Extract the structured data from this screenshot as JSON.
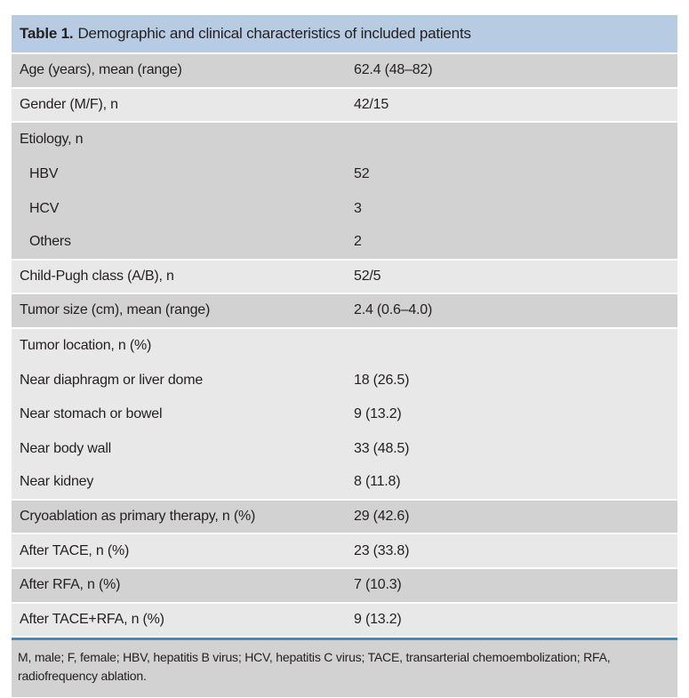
{
  "colors": {
    "header_bg": "#b7cce3",
    "row_dark": "#d2d2d2",
    "row_light": "#e8e8e8",
    "rule_blue": "#3e8ec5",
    "footnote_bg": "#d2d2d2",
    "text": "#231f20"
  },
  "table": {
    "title_label": "Table 1.",
    "title_text": "Demographic and clinical characteristics of included patients",
    "rows": [
      {
        "label": "Age (years), mean (range)",
        "value": "62.4 (48–82)",
        "shade": "dark",
        "indent": false,
        "joined": false
      },
      {
        "label": "Gender (M/F), n",
        "value": "42/15",
        "shade": "light",
        "indent": false,
        "joined": false
      },
      {
        "label": "Etiology, n",
        "value": "",
        "shade": "dark",
        "indent": false,
        "joined": true
      },
      {
        "label": "HBV",
        "value": "52",
        "shade": "dark",
        "indent": true,
        "joined": true
      },
      {
        "label": "HCV",
        "value": "3",
        "shade": "dark",
        "indent": true,
        "joined": true
      },
      {
        "label": "Others",
        "value": "2",
        "shade": "dark",
        "indent": true,
        "joined": false
      },
      {
        "label": "Child-Pugh class (A/B), n",
        "value": "52/5",
        "shade": "light",
        "indent": false,
        "joined": false
      },
      {
        "label": "Tumor size (cm), mean (range)",
        "value": "2.4 (0.6–4.0)",
        "shade": "dark",
        "indent": false,
        "joined": false
      },
      {
        "label": "Tumor location, n (%)",
        "value": "",
        "shade": "light",
        "indent": false,
        "joined": true
      },
      {
        "label": "Near diaphragm or liver dome",
        "value": "18 (26.5)",
        "shade": "light",
        "indent": false,
        "joined": true
      },
      {
        "label": "Near stomach or bowel",
        "value": "9 (13.2)",
        "shade": "light",
        "indent": false,
        "joined": true
      },
      {
        "label": "Near body wall",
        "value": "33 (48.5)",
        "shade": "light",
        "indent": false,
        "joined": true
      },
      {
        "label": "Near kidney",
        "value": "8 (11.8)",
        "shade": "light",
        "indent": false,
        "joined": false
      },
      {
        "label": "Cryoablation as primary therapy, n (%)",
        "value": "29 (42.6)",
        "shade": "dark",
        "indent": false,
        "joined": false
      },
      {
        "label": "After TACE, n (%)",
        "value": "23 (33.8)",
        "shade": "light",
        "indent": false,
        "joined": false
      },
      {
        "label": "After RFA, n (%)",
        "value": "7 (10.3)",
        "shade": "dark",
        "indent": false,
        "joined": false
      },
      {
        "label": "After TACE+RFA, n (%)",
        "value": "9 (13.2)",
        "shade": "light",
        "indent": false,
        "joined": false
      }
    ],
    "footnote_lines": [
      "M, male; F, female; HBV, hepatitis B virus; HCV, hepatitis C virus; TACE, transarterial chemoembolization; RFA,",
      "radiofrequency ablation."
    ]
  }
}
